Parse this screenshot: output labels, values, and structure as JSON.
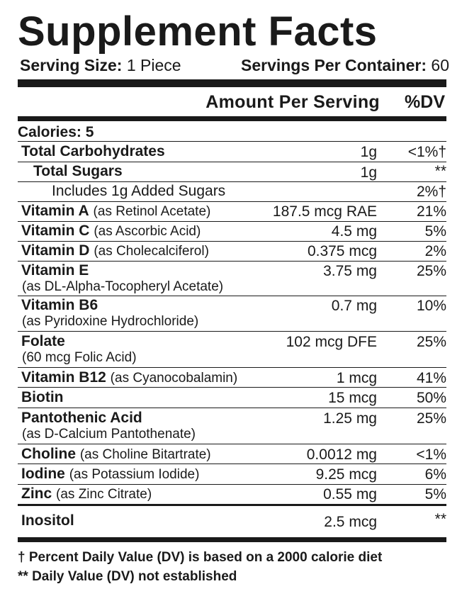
{
  "title": "Supplement Facts",
  "serving": {
    "size_label": "Serving Size:",
    "size_value": "1 Piece",
    "per_container_label": "Servings Per Container:",
    "per_container_value": "60"
  },
  "header": {
    "amount_label": "Amount Per Serving",
    "dv_label": "%DV"
  },
  "calories": "Calories: 5",
  "nutrients": [
    {
      "name": "Total Carbohydrates",
      "source": "",
      "amount": "1g",
      "dv": "<1%†"
    },
    {
      "name": "Total Sugars",
      "source": "",
      "amount": "1g",
      "dv": "**"
    },
    {
      "name": "Includes 1g Added Sugars",
      "source": "",
      "amount": "",
      "dv": "2%†"
    },
    {
      "name": "Vitamin A",
      "source": "(as Retinol Acetate)",
      "amount": "187.5 mcg RAE",
      "dv": "21%"
    },
    {
      "name": "Vitamin C",
      "source": "(as Ascorbic Acid)",
      "amount": "4.5 mg",
      "dv": "5%"
    },
    {
      "name": "Vitamin D",
      "source": "(as Cholecalciferol)",
      "amount": "0.375 mcg",
      "dv": "2%"
    },
    {
      "name": "Vitamin E",
      "source": "(as DL-Alpha-Tocopheryl Acetate)",
      "amount": "3.75 mg",
      "dv": "25%"
    },
    {
      "name": "Vitamin B6",
      "source": "(as Pyridoxine Hydrochloride)",
      "amount": "0.7 mg",
      "dv": "10%"
    },
    {
      "name": "Folate",
      "source": "(60 mcg Folic Acid)",
      "amount": "102 mcg DFE",
      "dv": "25%"
    },
    {
      "name": "Vitamin B12",
      "source": "(as Cyanocobalamin)",
      "amount": "1 mcg",
      "dv": "41%"
    },
    {
      "name": "Biotin",
      "source": "",
      "amount": "15 mcg",
      "dv": "50%"
    },
    {
      "name": "Pantothenic Acid",
      "source": "(as D-Calcium Pantothenate)",
      "amount": "1.25 mg",
      "dv": "25%"
    },
    {
      "name": "Choline",
      "source": "(as Choline Bitartrate)",
      "amount": "0.0012 mg",
      "dv": "<1%"
    },
    {
      "name": "Iodine",
      "source": "(as Potassium Iodide)",
      "amount": "9.25 mcg",
      "dv": "6%"
    },
    {
      "name": "Zinc",
      "source": "(as Zinc Citrate)",
      "amount": "0.55 mg",
      "dv": "5%"
    },
    {
      "name": "Inositol",
      "source": "",
      "amount": "2.5 mcg",
      "dv": "**"
    }
  ],
  "footnotes": [
    "† Percent Daily Value (DV) is based on a 2000 calorie diet",
    "** Daily Value (DV) not established"
  ]
}
